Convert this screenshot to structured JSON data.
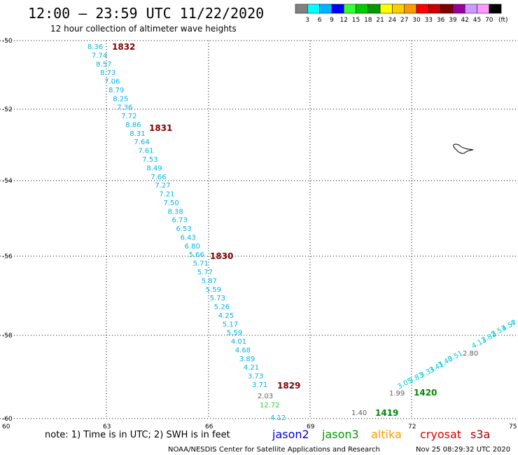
{
  "header": {
    "title": "12:00 – 23:59 UTC 11/22/2020",
    "subtitle": "12 hour collection of altimeter wave heights"
  },
  "legend": {
    "unit": "(ft)",
    "bins": [
      {
        "label": "3",
        "color": "#808080"
      },
      {
        "label": "6",
        "color": "#00ffff"
      },
      {
        "label": "9",
        "color": "#00b4ff"
      },
      {
        "label": "12",
        "color": "#0000ff"
      },
      {
        "label": "15",
        "color": "#33ff33"
      },
      {
        "label": "18",
        "color": "#00cc00"
      },
      {
        "label": "21",
        "color": "#009900"
      },
      {
        "label": "24",
        "color": "#ffff00"
      },
      {
        "label": "27",
        "color": "#ffcc00"
      },
      {
        "label": "30",
        "color": "#ff9900"
      },
      {
        "label": "33",
        "color": "#ff0000"
      },
      {
        "label": "36",
        "color": "#cc0000"
      },
      {
        "label": "39",
        "color": "#800000"
      },
      {
        "label": "42",
        "color": "#990099"
      },
      {
        "label": "45",
        "color": "#cc99ff"
      },
      {
        "label": "70",
        "color": "#ff99ff"
      },
      {
        "label": "",
        "color": "#000000"
      }
    ]
  },
  "axes": {
    "lon_ticks": [
      "60",
      "63",
      "66",
      "69",
      "72",
      "75"
    ],
    "lat_ticks": [
      "-50",
      "-52",
      "-54",
      "-56",
      "-58",
      "-60"
    ]
  },
  "track_a": {
    "color": "#00b4e6",
    "values": [
      "8.36",
      "7.74",
      "8.57",
      "8.73",
      "7.06",
      "8.79",
      "8.25",
      "7.36",
      "7.72",
      "8.86",
      "8.31",
      "7.64",
      "7.61",
      "7.53",
      "8.49",
      "7.66",
      "7.27",
      "7.21",
      "7.50",
      "8.38",
      "6.73",
      "6.53",
      "6.43",
      "6.80",
      "5.66",
      "5.71",
      "5.77",
      "5.87",
      "5.59",
      "5.73",
      "5.26",
      "4.25",
      "5.17",
      "5.59",
      "4.01",
      "4.68",
      "3.89",
      "4.21",
      "3.73",
      "3.71"
    ]
  },
  "track_a_tail": [
    {
      "value": "2.03",
      "color": "#606060"
    },
    {
      "value": "12.72",
      "color": "#33cc33"
    },
    {
      "value": "4.12",
      "color": "#00b4e6"
    }
  ],
  "track_b": {
    "values": [
      {
        "value": "1.99",
        "color": "#606060"
      },
      {
        "value": "3.05",
        "color": "#00c8d8"
      },
      {
        "value": "3.83",
        "color": "#00c8d8"
      },
      {
        "value": "3.33",
        "color": "#00c8d8"
      },
      {
        "value": "3.41",
        "color": "#00c8d8"
      },
      {
        "value": "3.40",
        "color": "#00c8d8"
      },
      {
        "value": "3.51",
        "color": "#00c8d8"
      },
      {
        "value": "2.80",
        "color": "#606060"
      },
      {
        "value": "4.12",
        "color": "#00c8d8"
      },
      {
        "value": "3.82",
        "color": "#00c8d8"
      },
      {
        "value": "3.53",
        "color": "#00c8d8"
      },
      {
        "value": "4.57",
        "color": "#00c8d8"
      },
      {
        "value": "4",
        "color": "#00c8d8"
      }
    ]
  },
  "time_labels": {
    "t1832": "1832",
    "t1831": "1831",
    "t1830": "1830",
    "t1829": "1829",
    "t1420": "1420",
    "t1419": "1419"
  },
  "extra_value": {
    "value": "1.40",
    "color": "#606060"
  },
  "satellites": [
    {
      "name": "jason2",
      "color": "#0000dd"
    },
    {
      "name": "jason3",
      "color": "#009900"
    },
    {
      "name": "altika",
      "color": "#ff9900"
    },
    {
      "name": "cryosat",
      "color": "#dd0000"
    },
    {
      "name": "s3a",
      "color": "#aa0000"
    }
  ],
  "footer": {
    "note": "note: 1) Time is in UTC; 2) SWH is in feet",
    "credit": "NOAA/NESDIS Center for Satellite Applications and Research",
    "timestamp": "Nov 25 08:29:32 UTC 2020"
  }
}
